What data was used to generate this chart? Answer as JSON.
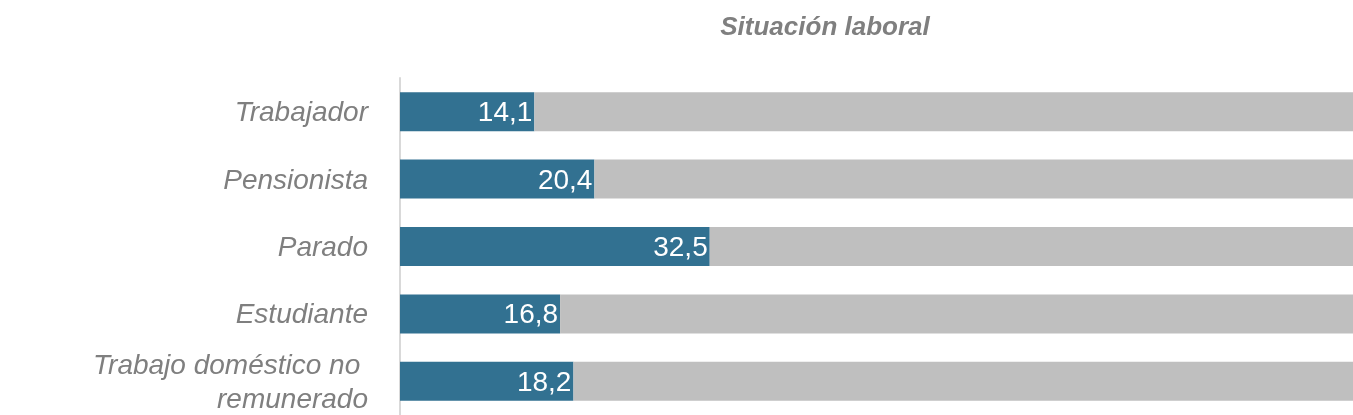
{
  "chart_data": {
    "type": "bar",
    "orientation": "horizontal",
    "stacked": true,
    "title": "Situación laboral",
    "categories": [
      "Trabajador",
      "Pensionista",
      "Parado",
      "Estudiante",
      "Trabajo doméstico no remunerado"
    ],
    "series": [
      {
        "color": "#327191",
        "values": [
          14.1,
          20.4,
          32.5,
          16.8,
          18.2
        ],
        "value_labels": [
          "14,1",
          "20,4",
          "32,5",
          "16,8",
          "18,2"
        ]
      },
      {
        "color": "#bfbfbf",
        "values": [
          85.9,
          79.6,
          67.5,
          83.2,
          81.8
        ]
      }
    ],
    "xlim": [
      0,
      100
    ],
    "tick_labels": "y"
  }
}
